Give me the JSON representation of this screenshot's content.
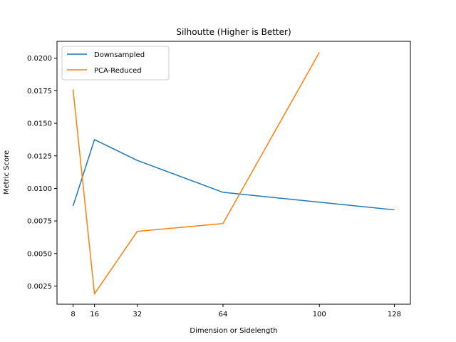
{
  "chart_data": {
    "type": "line",
    "title": "Silhoutte (Higher is Better)",
    "xlabel": "Dimension or Sidelength",
    "ylabel": "Metric Score",
    "xlim": [
      2,
      134
    ],
    "ylim": [
      0.0011,
      0.0213
    ],
    "x_ticks": [
      8,
      16,
      32,
      64,
      100,
      128
    ],
    "y_ticks": [
      0.0025,
      0.005,
      0.0075,
      0.01,
      0.0125,
      0.015,
      0.0175,
      0.02
    ],
    "y_tick_labels": [
      "0.0025",
      "0.0050",
      "0.0075",
      "0.0100",
      "0.0125",
      "0.0150",
      "0.0175",
      "0.0200"
    ],
    "grid": false,
    "legend_position": "top-left",
    "series": [
      {
        "name": "Downsampled",
        "color": "#1f77b4",
        "x": [
          8,
          16,
          32,
          64,
          128
        ],
        "y": [
          0.00865,
          0.01375,
          0.01215,
          0.0097,
          0.00835
        ]
      },
      {
        "name": "PCA-Reduced",
        "color": "#ff7f0e",
        "x": [
          8,
          16,
          32,
          64,
          100
        ],
        "y": [
          0.0176,
          0.0019,
          0.0067,
          0.0073,
          0.02045
        ]
      }
    ]
  }
}
